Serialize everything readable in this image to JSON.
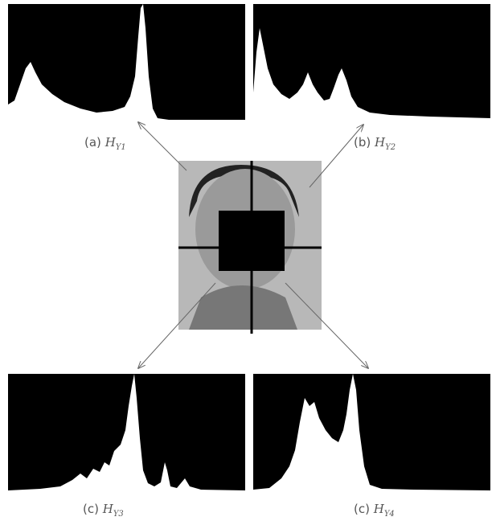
{
  "captions": [
    {
      "label": "(a)",
      "symbol": "H",
      "subscript": "Y1"
    },
    {
      "label": "(b)",
      "symbol": "H",
      "subscript": "Y2"
    },
    {
      "label": "(c)",
      "symbol": "H",
      "subscript": "Y3"
    },
    {
      "label": "(c)",
      "symbol": "H",
      "subscript": "Y4"
    }
  ]
}
